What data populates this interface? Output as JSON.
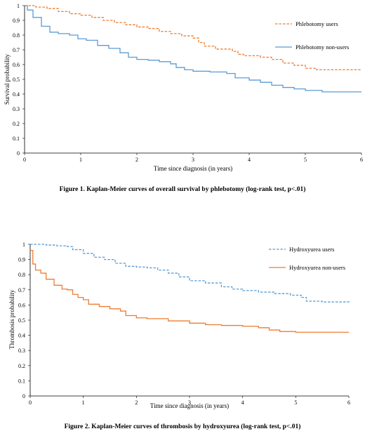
{
  "chart_data": [
    {
      "type": "line",
      "title": "",
      "caption": "Figure 1. Kaplan-Meier curves of overall survival by phlebotomy (log-rank test, p<.01)",
      "xlabel": "Time since diagnosis (in years)",
      "ylabel": "Survival probability",
      "xlim": [
        0,
        6
      ],
      "ylim": [
        0,
        1
      ],
      "xticks": [
        "0",
        "1",
        "2",
        "3",
        "4",
        "5",
        "6"
      ],
      "yticks": [
        "0",
        "0.1",
        "0.2",
        "0.3",
        "0.4",
        "0.5",
        "0.6",
        "0.7",
        "0.8",
        "0.9",
        "1"
      ],
      "grid": false,
      "legend_position": "top-right",
      "series": [
        {
          "name": "Phlebotomy users",
          "color": "#ED7D31",
          "style": "dashed",
          "points": [
            [
              0,
              1
            ],
            [
              0.2,
              0.99
            ],
            [
              0.4,
              0.98
            ],
            [
              0.6,
              0.96
            ],
            [
              0.8,
              0.945
            ],
            [
              1.0,
              0.935
            ],
            [
              1.2,
              0.92
            ],
            [
              1.4,
              0.9
            ],
            [
              1.6,
              0.885
            ],
            [
              1.8,
              0.87
            ],
            [
              2.0,
              0.855
            ],
            [
              2.2,
              0.845
            ],
            [
              2.4,
              0.825
            ],
            [
              2.6,
              0.81
            ],
            [
              2.8,
              0.795
            ],
            [
              3.0,
              0.78
            ],
            [
              3.1,
              0.75
            ],
            [
              3.2,
              0.725
            ],
            [
              3.4,
              0.705
            ],
            [
              3.7,
              0.69
            ],
            [
              3.8,
              0.67
            ],
            [
              3.9,
              0.66
            ],
            [
              4.2,
              0.65
            ],
            [
              4.4,
              0.635
            ],
            [
              4.6,
              0.61
            ],
            [
              4.8,
              0.595
            ],
            [
              5.0,
              0.575
            ],
            [
              5.2,
              0.565
            ],
            [
              5.5,
              0.565
            ],
            [
              6.0,
              0.565
            ]
          ]
        },
        {
          "name": "Phlebotomy non-users",
          "color": "#5B9BD5",
          "style": "solid",
          "points": [
            [
              0,
              1
            ],
            [
              0.05,
              0.97
            ],
            [
              0.15,
              0.92
            ],
            [
              0.3,
              0.86
            ],
            [
              0.45,
              0.82
            ],
            [
              0.6,
              0.81
            ],
            [
              0.8,
              0.8
            ],
            [
              0.95,
              0.775
            ],
            [
              1.1,
              0.765
            ],
            [
              1.3,
              0.73
            ],
            [
              1.5,
              0.71
            ],
            [
              1.7,
              0.68
            ],
            [
              1.85,
              0.65
            ],
            [
              2.0,
              0.635
            ],
            [
              2.2,
              0.63
            ],
            [
              2.4,
              0.62
            ],
            [
              2.6,
              0.605
            ],
            [
              2.7,
              0.58
            ],
            [
              2.85,
              0.565
            ],
            [
              3.0,
              0.555
            ],
            [
              3.3,
              0.55
            ],
            [
              3.6,
              0.54
            ],
            [
              3.75,
              0.51
            ],
            [
              4.0,
              0.495
            ],
            [
              4.2,
              0.48
            ],
            [
              4.4,
              0.46
            ],
            [
              4.6,
              0.445
            ],
            [
              4.8,
              0.435
            ],
            [
              5.0,
              0.425
            ],
            [
              5.3,
              0.415
            ],
            [
              5.6,
              0.415
            ],
            [
              6.0,
              0.415
            ]
          ]
        }
      ]
    },
    {
      "type": "line",
      "title": "",
      "caption": "Figure 2. Kaplan-Meier curves of thrombosis by hydroxyurea (log-rank test, p<.01)",
      "xlabel": "Time since diagnosis (in years)",
      "ylabel": "Thrombosis probability",
      "xlim": [
        0,
        6
      ],
      "ylim": [
        0,
        1
      ],
      "xticks": [
        "0",
        "1",
        "2",
        "3",
        "4",
        "5",
        "6"
      ],
      "yticks": [
        "0",
        "0.1",
        "0.2",
        "0.3",
        "0.4",
        "0.5",
        "0.6",
        "0.7",
        "0.8",
        "0.9",
        "1"
      ],
      "grid": false,
      "legend_position": "top-right",
      "series": [
        {
          "name": "Hydroxyurea users",
          "color": "#5B9BD5",
          "style": "dashed",
          "points": [
            [
              0,
              1
            ],
            [
              0.3,
              0.995
            ],
            [
              0.5,
              0.99
            ],
            [
              0.7,
              0.985
            ],
            [
              0.8,
              0.965
            ],
            [
              1.0,
              0.94
            ],
            [
              1.2,
              0.915
            ],
            [
              1.4,
              0.9
            ],
            [
              1.6,
              0.875
            ],
            [
              1.8,
              0.855
            ],
            [
              2.0,
              0.85
            ],
            [
              2.2,
              0.845
            ],
            [
              2.4,
              0.83
            ],
            [
              2.6,
              0.81
            ],
            [
              2.8,
              0.785
            ],
            [
              3.0,
              0.76
            ],
            [
              3.3,
              0.745
            ],
            [
              3.6,
              0.72
            ],
            [
              3.8,
              0.705
            ],
            [
              4.0,
              0.695
            ],
            [
              4.3,
              0.685
            ],
            [
              4.6,
              0.675
            ],
            [
              4.9,
              0.665
            ],
            [
              5.1,
              0.65
            ],
            [
              5.2,
              0.625
            ],
            [
              5.5,
              0.62
            ],
            [
              6.0,
              0.625
            ]
          ]
        },
        {
          "name": "Hydroxyurea non-users",
          "color": "#ED7D31",
          "style": "solid",
          "points": [
            [
              0,
              0.96
            ],
            [
              0.05,
              0.87
            ],
            [
              0.1,
              0.83
            ],
            [
              0.2,
              0.81
            ],
            [
              0.3,
              0.77
            ],
            [
              0.45,
              0.73
            ],
            [
              0.6,
              0.705
            ],
            [
              0.7,
              0.7
            ],
            [
              0.8,
              0.67
            ],
            [
              0.9,
              0.65
            ],
            [
              1.0,
              0.635
            ],
            [
              1.1,
              0.605
            ],
            [
              1.3,
              0.59
            ],
            [
              1.5,
              0.575
            ],
            [
              1.7,
              0.56
            ],
            [
              1.8,
              0.53
            ],
            [
              2.0,
              0.515
            ],
            [
              2.2,
              0.51
            ],
            [
              2.6,
              0.495
            ],
            [
              3.0,
              0.48
            ],
            [
              3.3,
              0.47
            ],
            [
              3.6,
              0.465
            ],
            [
              4.0,
              0.46
            ],
            [
              4.3,
              0.45
            ],
            [
              4.5,
              0.435
            ],
            [
              4.7,
              0.425
            ],
            [
              5.0,
              0.42
            ],
            [
              5.5,
              0.42
            ],
            [
              6.0,
              0.42
            ]
          ]
        }
      ]
    }
  ]
}
